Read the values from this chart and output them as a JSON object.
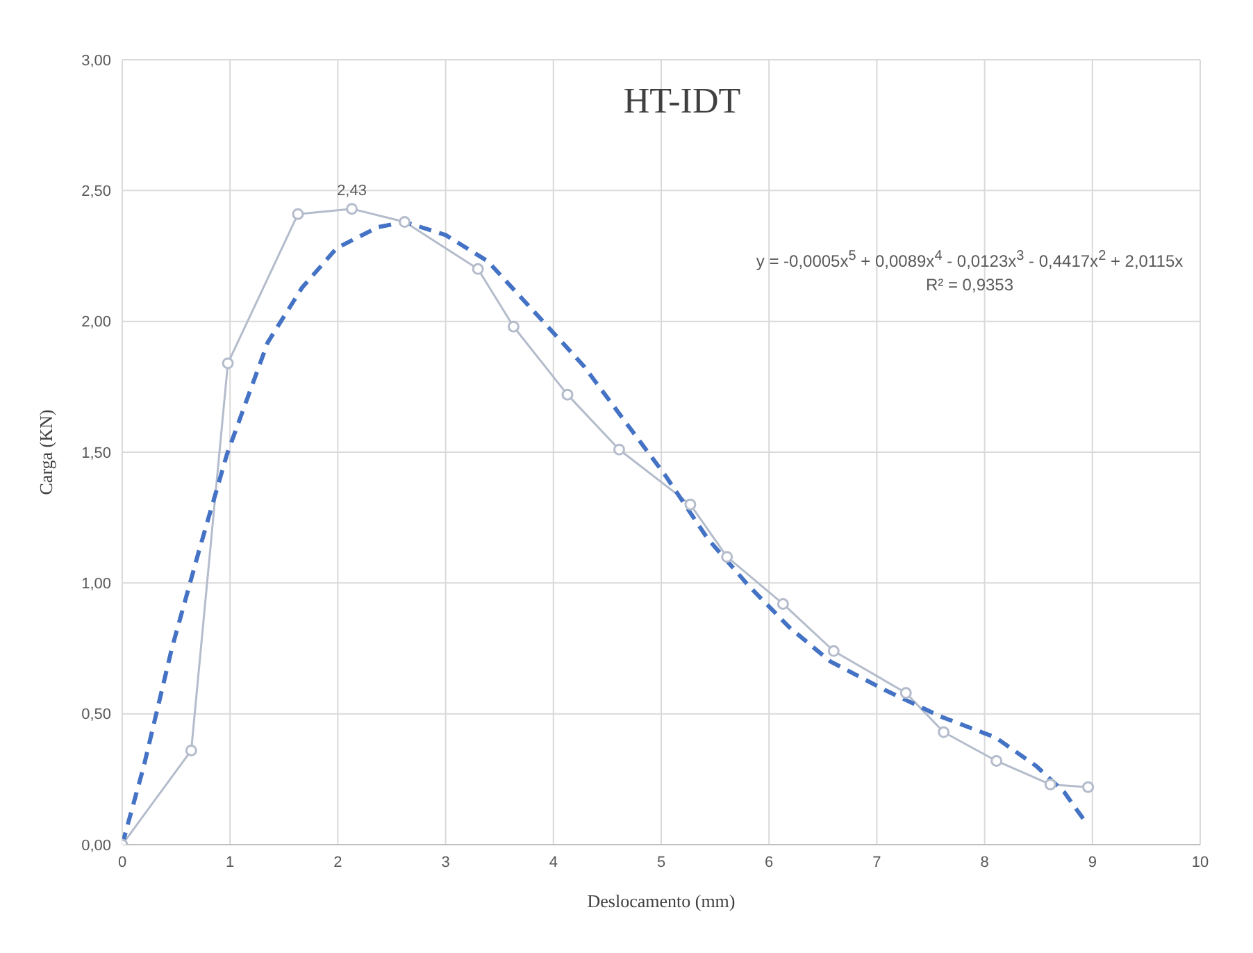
{
  "chart_data": {
    "type": "line",
    "title": "HT-IDT",
    "xlabel": "Deslocamento (mm)",
    "ylabel": "Carga (KN)",
    "annotations": [
      "y = -0,0005x$^{5}$ + 0,0089x$^{4}$ - 0,0123x$^{3}$ - 0,4417x$^{2}$ + 2,0115x",
      "R² = 0,9353"
    ],
    "xlim": [
      0,
      10
    ],
    "xticks": [
      0,
      1,
      2,
      3,
      4,
      5,
      6,
      7,
      8,
      9,
      10
    ],
    "ylim": [
      0,
      3
    ],
    "yticks": [
      {
        "value": 0,
        "label": "0,00"
      },
      {
        "value": 0.5,
        "label": "0,50"
      },
      {
        "value": 1,
        "label": "1,00"
      },
      {
        "value": 1.5,
        "label": "1,50"
      },
      {
        "value": 2,
        "label": "2,00"
      },
      {
        "value": 2.5,
        "label": "2,50"
      },
      {
        "value": 3,
        "label": "3,00"
      }
    ],
    "grid": true,
    "series": [
      {
        "color": "#b4bccc",
        "marker": "circle",
        "line_style": "solid",
        "x": [
          0,
          0.64,
          0.98,
          1.63,
          2.13,
          2.62,
          3.3,
          3.63,
          4.13,
          4.61,
          5.27,
          5.61,
          6.13,
          6.6,
          7.27,
          7.62,
          8.11,
          8.61,
          8.96
        ],
        "values": [
          0,
          0.36,
          1.84,
          2.41,
          2.43,
          2.38,
          2.2,
          1.98,
          1.72,
          1.51,
          1.3,
          1.1,
          0.92,
          0.74,
          0.58,
          0.43,
          0.32,
          0.23,
          0.22
        ],
        "value_labels": [
          null,
          null,
          null,
          null,
          "2,43",
          null,
          null,
          null,
          null,
          null,
          null,
          null,
          null,
          null,
          null,
          null,
          null,
          null,
          null
        ]
      },
      {
        "color": "#4472c4",
        "marker": "none",
        "line_style": "dashed",
        "x": [
          0,
          0.2,
          0.46,
          0.71,
          0.97,
          1.35,
          1.67,
          1.99,
          2.37,
          2.62,
          3,
          3.39,
          3.77,
          4.28,
          4.66,
          5.04,
          5.43,
          5.81,
          6.19,
          6.57,
          7.08,
          7.59,
          8.1,
          8.48,
          8.74,
          8.93
        ],
        "values": [
          0,
          0.3,
          0.75,
          1.12,
          1.49,
          1.92,
          2.13,
          2.28,
          2.36,
          2.38,
          2.33,
          2.23,
          2.06,
          1.83,
          1.62,
          1.41,
          1.17,
          0.99,
          0.83,
          0.7,
          0.59,
          0.49,
          0.41,
          0.3,
          0.2,
          0.09
        ]
      }
    ]
  }
}
